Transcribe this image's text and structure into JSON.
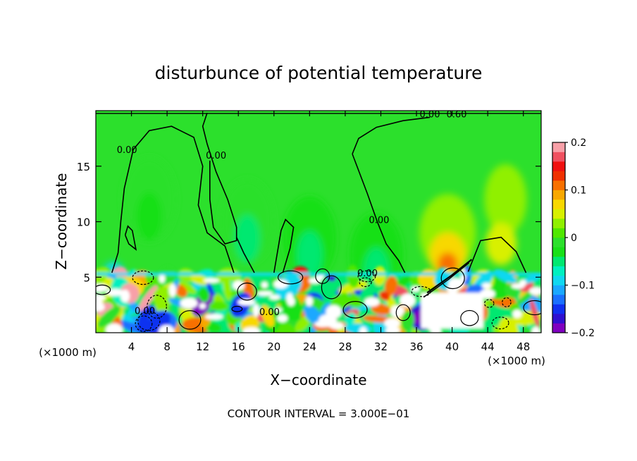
{
  "chart_data": {
    "type": "heatmap",
    "title": "disturbunce of potential temperature",
    "xlabel": "X−coordinate",
    "ylabel": "Z−coordinate",
    "x_unit_label": "(×1000 m)",
    "footer": "CONTOUR INTERVAL = 3.000E−01",
    "xlim": [
      0,
      50
    ],
    "ylim": [
      0,
      20
    ],
    "x_ticks": [
      {
        "value": 4,
        "label": "4"
      },
      {
        "value": 8,
        "label": "8"
      },
      {
        "value": 12,
        "label": "12"
      },
      {
        "value": 16,
        "label": "16"
      },
      {
        "value": 20,
        "label": "20"
      },
      {
        "value": 24,
        "label": "24"
      },
      {
        "value": 28,
        "label": "28"
      },
      {
        "value": 32,
        "label": "32"
      },
      {
        "value": 36,
        "label": "36"
      },
      {
        "value": 40,
        "label": "40"
      },
      {
        "value": 44,
        "label": "44"
      },
      {
        "value": 48,
        "label": "48"
      }
    ],
    "y_ticks": [
      {
        "value": 5,
        "label": "5"
      },
      {
        "value": 10,
        "label": "10"
      },
      {
        "value": 15,
        "label": "15"
      }
    ],
    "colorbar": {
      "range": [
        -0.2,
        0.2
      ],
      "ticks": [
        {
          "value": 0.2,
          "label": "0.2"
        },
        {
          "value": 0.1,
          "label": "0.1"
        },
        {
          "value": 0.0,
          "label": "0"
        },
        {
          "value": -0.1,
          "label": "−0.1"
        },
        {
          "value": -0.2,
          "label": "−0.2"
        }
      ],
      "colors": [
        "#8000c0",
        "#3010d0",
        "#1030f0",
        "#1a70ff",
        "#1aa8ff",
        "#10d8f0",
        "#00f0c0",
        "#00e870",
        "#18e018",
        "#2ce02c",
        "#50e800",
        "#90f000",
        "#d8f000",
        "#f8d800",
        "#f8a800",
        "#f87000",
        "#f03000",
        "#f01010",
        "#f05060",
        "#f8a0a8"
      ]
    },
    "contour_labels": [
      {
        "x": 3.5,
        "z": 16.5,
        "text": "0.00"
      },
      {
        "x": 13.5,
        "z": 16.0,
        "text": "0.00"
      },
      {
        "x": 31.8,
        "z": 10.2,
        "text": "0.00"
      },
      {
        "x": 19.5,
        "z": 1.9,
        "text": "0.00"
      },
      {
        "x": 37.5,
        "z": 19.7,
        "text": "0.00"
      },
      {
        "x": 40.5,
        "z": 19.7,
        "text": "0.60"
      },
      {
        "x": 30.5,
        "z": 5.4,
        "text": "0.00"
      },
      {
        "x": 5.5,
        "z": 2.0,
        "text": "0.00"
      }
    ],
    "features": {
      "upper_region_value": 0.0,
      "warm_anomaly": {
        "x": 39.5,
        "z": 7.0,
        "max_value": 0.12
      },
      "cool_anomalies": [
        {
          "x": 6.0,
          "z": 12.0,
          "value": -0.03
        },
        {
          "x": 17.0,
          "z": 10.0,
          "value": -0.04
        },
        {
          "x": 24.0,
          "z": 8.5,
          "value": -0.06
        },
        {
          "x": 31.5,
          "z": 7.0,
          "value": -0.05
        }
      ],
      "mixed_layer_top": 5.3,
      "mixed_layer_range": [
        -0.2,
        0.2
      ]
    }
  }
}
